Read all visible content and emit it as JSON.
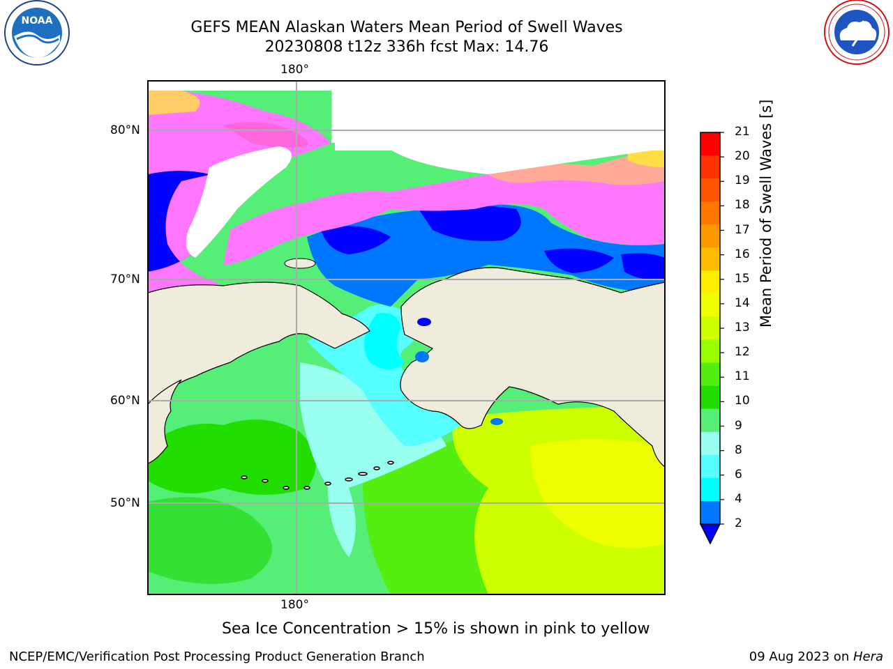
{
  "title": {
    "line1": "GEFS MEAN Alaskan Waters Mean Period of Swell Waves",
    "line2": "20230808 t12z 336h fcst   Max: 14.76"
  },
  "map": {
    "lon_label_top": "180°",
    "lon_label_bottom": "180°",
    "lat_labels": [
      "80°N",
      "70°N",
      "60°N",
      "50°N"
    ],
    "land_color": "#efecdc",
    "ice_color": "#ffffff"
  },
  "colorbar": {
    "label": "Mean Period of Swell Waves [s]",
    "ticks": [
      "21",
      "20",
      "19",
      "18",
      "17",
      "16",
      "15",
      "14",
      "13",
      "12",
      "11",
      "10",
      "9",
      "8",
      "6",
      "4",
      "2"
    ],
    "colors": [
      "#ff0000",
      "#ff3300",
      "#ff5500",
      "#ff7700",
      "#ff9900",
      "#ffbb00",
      "#ffee00",
      "#eeff00",
      "#ccff00",
      "#99ff00",
      "#55ee11",
      "#22dd00",
      "#55ee77",
      "#99ffee",
      "#55ffff",
      "#00ffff",
      "#0077ff"
    ],
    "extend_color": "#0000ff"
  },
  "caption": "Sea Ice Concentration > 15% is shown in pink to yellow",
  "footer": {
    "credit": "NCEP/EMC/Verification Post Processing Product Generation Branch",
    "date": "09 Aug 2023 on ",
    "host": "Hera"
  },
  "logos": {
    "left": "NOAA",
    "right": "NATIONAL WEATHER SERVICE"
  }
}
